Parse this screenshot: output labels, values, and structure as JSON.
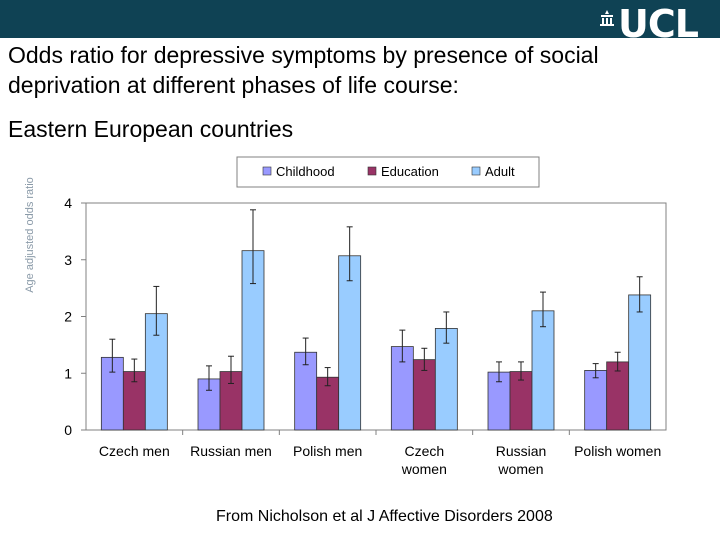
{
  "slide": {
    "title": "Odds ratio for depressive symptoms by presence of social deprivation at different phases of life course:",
    "subtitle": "Eastern European countries",
    "source": "From Nicholson et al J Affective Disorders 2008",
    "logo_text": "UCL"
  },
  "colors": {
    "topbar": "#0f4254",
    "childhood": "#9999ff",
    "education": "#993366",
    "adult": "#99ccff"
  },
  "chart_data": {
    "type": "bar",
    "title": "",
    "xlabel": "",
    "ylabel": "Age adjusted odds ratio",
    "ylim": [
      0,
      4
    ],
    "yticks": [
      "0",
      "1",
      "2",
      "3",
      "4"
    ],
    "legend_position": "top",
    "grid": false,
    "categories": [
      [
        "Czech men"
      ],
      [
        "Russian men"
      ],
      [
        "Polish men"
      ],
      [
        "Czech",
        "women"
      ],
      [
        "Russian",
        "women"
      ],
      [
        "Polish women"
      ]
    ],
    "series": [
      {
        "name": "Childhood",
        "color": "#9999ff",
        "values": [
          1.28,
          0.9,
          1.37,
          1.47,
          1.02,
          1.05
        ],
        "err_low": [
          1.02,
          0.7,
          1.15,
          1.2,
          0.85,
          0.92
        ],
        "err_high": [
          1.6,
          1.13,
          1.62,
          1.76,
          1.2,
          1.17
        ]
      },
      {
        "name": "Education",
        "color": "#993366",
        "values": [
          1.03,
          1.03,
          0.93,
          1.24,
          1.03,
          1.2
        ],
        "err_low": [
          0.85,
          0.82,
          0.78,
          1.05,
          0.88,
          1.04
        ],
        "err_high": [
          1.25,
          1.3,
          1.1,
          1.44,
          1.2,
          1.37
        ]
      },
      {
        "name": "Adult",
        "color": "#99ccff",
        "values": [
          2.05,
          3.16,
          3.07,
          1.79,
          2.1,
          2.38
        ],
        "err_low": [
          1.67,
          2.58,
          2.63,
          1.53,
          1.82,
          2.08
        ],
        "err_high": [
          2.53,
          3.88,
          3.58,
          2.08,
          2.43,
          2.7
        ]
      }
    ]
  }
}
